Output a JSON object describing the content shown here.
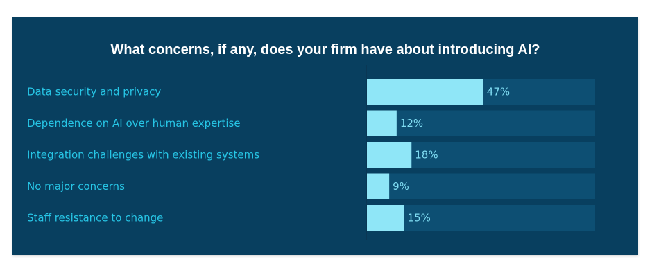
{
  "chart_data": {
    "type": "bar",
    "orientation": "horizontal",
    "title": "What concerns, if any, does your firm have about introducing AI?",
    "categories": [
      "Data security and privacy",
      "Dependence on AI over human expertise",
      "Integration challenges with existing systems",
      "No major concerns",
      "Staff resistance to change"
    ],
    "values": [
      47,
      12,
      18,
      9,
      15
    ],
    "value_labels": [
      "47%",
      "12%",
      "18%",
      "9%",
      "15%"
    ],
    "xlim": [
      0,
      100
    ],
    "grid": false,
    "legend": "none"
  },
  "colors": {
    "panel_background": "#083f5f",
    "track": "#0d4f73",
    "bar": "#8fe6f7",
    "category_text": "#27c6e6",
    "value_text": "#7fdcf2",
    "title_text": "#ffffff"
  }
}
